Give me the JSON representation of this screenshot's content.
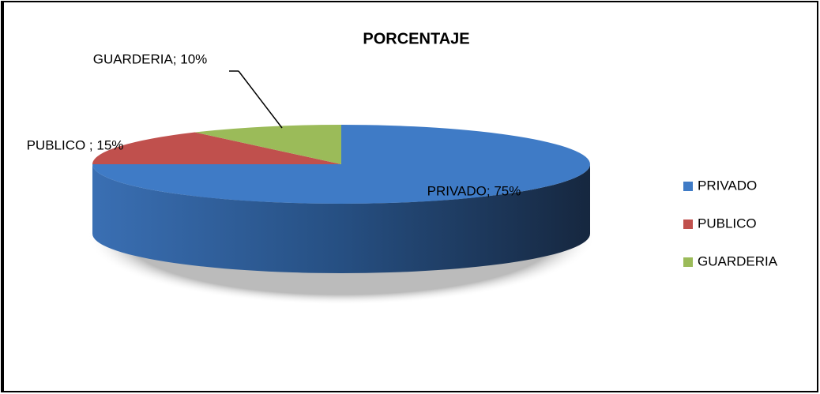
{
  "chart_data": {
    "type": "pie",
    "title": "PORCENTAJE",
    "categories": [
      "PRIVADO",
      "PUBLICO",
      "GUARDERIA"
    ],
    "values": [
      75,
      15,
      10
    ],
    "value_labels": [
      "PRIVADO; 75%",
      "PUBLICO ; 15%",
      "GUARDERIA; 10%"
    ],
    "colors": [
      "#3f7bc6",
      "#c0504d",
      "#9bbb59"
    ],
    "legend": "right"
  }
}
